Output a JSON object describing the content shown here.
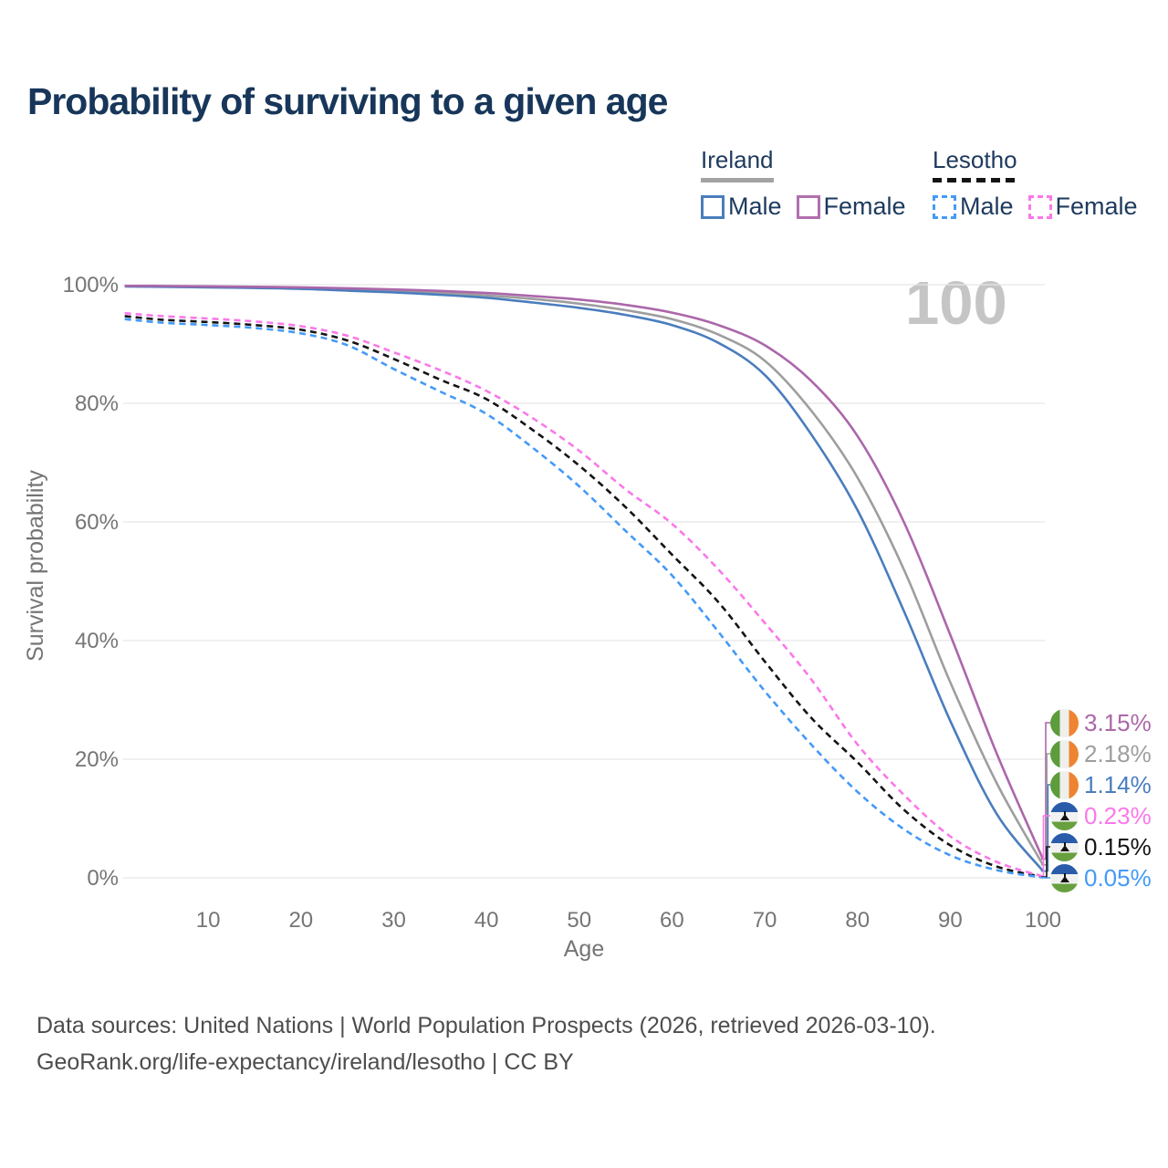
{
  "title": "Probability of surviving to a given age",
  "watermark": "100",
  "legend": {
    "groups": [
      {
        "country": "Ireland",
        "line_style": "solid",
        "line_style_color": "#a3a3a3",
        "items": [
          {
            "label": "Male",
            "color": "#4a7dbd"
          },
          {
            "label": "Female",
            "color": "#b16fae"
          }
        ]
      },
      {
        "country": "Lesotho",
        "line_style": "dashed",
        "line_style_color": "#141414",
        "items": [
          {
            "label": "Male",
            "color": "#449af7"
          },
          {
            "label": "Female",
            "color": "#fb78e9"
          }
        ]
      }
    ]
  },
  "chart_data": {
    "type": "line",
    "title": "Probability of surviving to a given age",
    "xlabel": "Age",
    "ylabel": "Survival probability",
    "xlim": [
      1,
      100
    ],
    "ylim": [
      0,
      100
    ],
    "grid": "horizontal",
    "annotation": "100",
    "x": [
      1,
      5,
      10,
      15,
      20,
      25,
      30,
      35,
      40,
      45,
      50,
      55,
      60,
      65,
      70,
      75,
      80,
      85,
      90,
      95,
      100
    ],
    "xticks": [
      {
        "value": 10,
        "label": "10"
      },
      {
        "value": 20,
        "label": "20"
      },
      {
        "value": 30,
        "label": "30"
      },
      {
        "value": 40,
        "label": "40"
      },
      {
        "value": 50,
        "label": "50"
      },
      {
        "value": 60,
        "label": "60"
      },
      {
        "value": 70,
        "label": "70"
      },
      {
        "value": 80,
        "label": "80"
      },
      {
        "value": 90,
        "label": "90"
      },
      {
        "value": 100,
        "label": "100"
      }
    ],
    "yticks": [
      {
        "value": 0,
        "label": "0%"
      },
      {
        "value": 20,
        "label": "20%"
      },
      {
        "value": 40,
        "label": "40%"
      },
      {
        "value": 60,
        "label": "60%"
      },
      {
        "value": 80,
        "label": "80%"
      },
      {
        "value": 100,
        "label": "100%"
      }
    ],
    "series": [
      {
        "id": "ls_all",
        "name": "Lesotho — All",
        "country": "Lesotho",
        "color": "#141414",
        "dashed": true,
        "values": [
          94.7,
          94.1,
          93.7,
          93.2,
          92.4,
          90.6,
          87.5,
          84,
          80.7,
          75.5,
          69.5,
          62.5,
          54.5,
          46.5,
          36.5,
          27,
          19.5,
          11.5,
          5.5,
          1.9,
          0.15
        ]
      },
      {
        "id": "ls_male",
        "name": "Lesotho — Male",
        "country": "Lesotho",
        "color": "#449af7",
        "dashed": true,
        "values": [
          94.2,
          93.6,
          93.2,
          92.7,
          91.8,
          89.8,
          85.8,
          82,
          78.2,
          72.5,
          66,
          58.5,
          51,
          41.5,
          31.5,
          22.5,
          14.5,
          8.2,
          3.8,
          1.3,
          0.05
        ]
      },
      {
        "id": "ls_female",
        "name": "Lesotho — Female",
        "country": "Lesotho",
        "color": "#fb78e9",
        "dashed": true,
        "values": [
          95.2,
          94.7,
          94.3,
          93.8,
          93.0,
          91.4,
          88.6,
          85.6,
          82.1,
          77.5,
          72,
          65.5,
          59.7,
          52,
          43,
          33.5,
          22.5,
          14,
          7,
          2.7,
          0.23
        ]
      },
      {
        "id": "ie_all",
        "name": "Ireland — All",
        "country": "Ireland",
        "color": "#9e9e9e",
        "dashed": false,
        "values": [
          99.75,
          99.7,
          99.6,
          99.5,
          99.4,
          99.2,
          98.9,
          98.6,
          98.2,
          97.6,
          96.8,
          95.7,
          94.2,
          91.6,
          87.2,
          78.8,
          67.5,
          52,
          33,
          16,
          2.18
        ]
      },
      {
        "id": "ie_male",
        "name": "Ireland — Male",
        "country": "Ireland",
        "color": "#4a7dbd",
        "dashed": false,
        "values": [
          99.7,
          99.65,
          99.55,
          99.45,
          99.3,
          99.0,
          98.7,
          98.3,
          97.8,
          97.0,
          96.1,
          94.9,
          93.2,
          90.2,
          84.8,
          74.8,
          62,
          45,
          26.5,
          10.8,
          1.14
        ]
      },
      {
        "id": "ie_female",
        "name": "Ireland — Female",
        "country": "Ireland",
        "color": "#ab67aa",
        "dashed": false,
        "values": [
          99.8,
          99.78,
          99.72,
          99.65,
          99.55,
          99.4,
          99.2,
          98.95,
          98.6,
          98.1,
          97.5,
          96.6,
          95.3,
          93.2,
          89.8,
          83.8,
          74.5,
          60,
          41,
          21,
          3.15
        ]
      }
    ],
    "end_labels": [
      {
        "value": "3.15%",
        "flag": "ireland",
        "series": "ie_female",
        "color": "#ab67aa"
      },
      {
        "value": "2.18%",
        "flag": "ireland",
        "series": "ie_all",
        "color": "#9e9e9e"
      },
      {
        "value": "1.14%",
        "flag": "ireland",
        "series": "ie_male",
        "color": "#4a7dbd"
      },
      {
        "value": "0.23%",
        "flag": "lesotho",
        "series": "ls_female",
        "color": "#fb78e9"
      },
      {
        "value": "0.15%",
        "flag": "lesotho",
        "series": "ls_all",
        "color": "#141414"
      },
      {
        "value": "0.05%",
        "flag": "lesotho",
        "series": "ls_male",
        "color": "#449af7"
      }
    ]
  },
  "footer": {
    "line1": "Data sources: United Nations | World Population Prospects (2026, retrieved 2026-03-10).",
    "line2": "GeoRank.org/life-expectancy/ireland/lesotho | CC BY"
  }
}
